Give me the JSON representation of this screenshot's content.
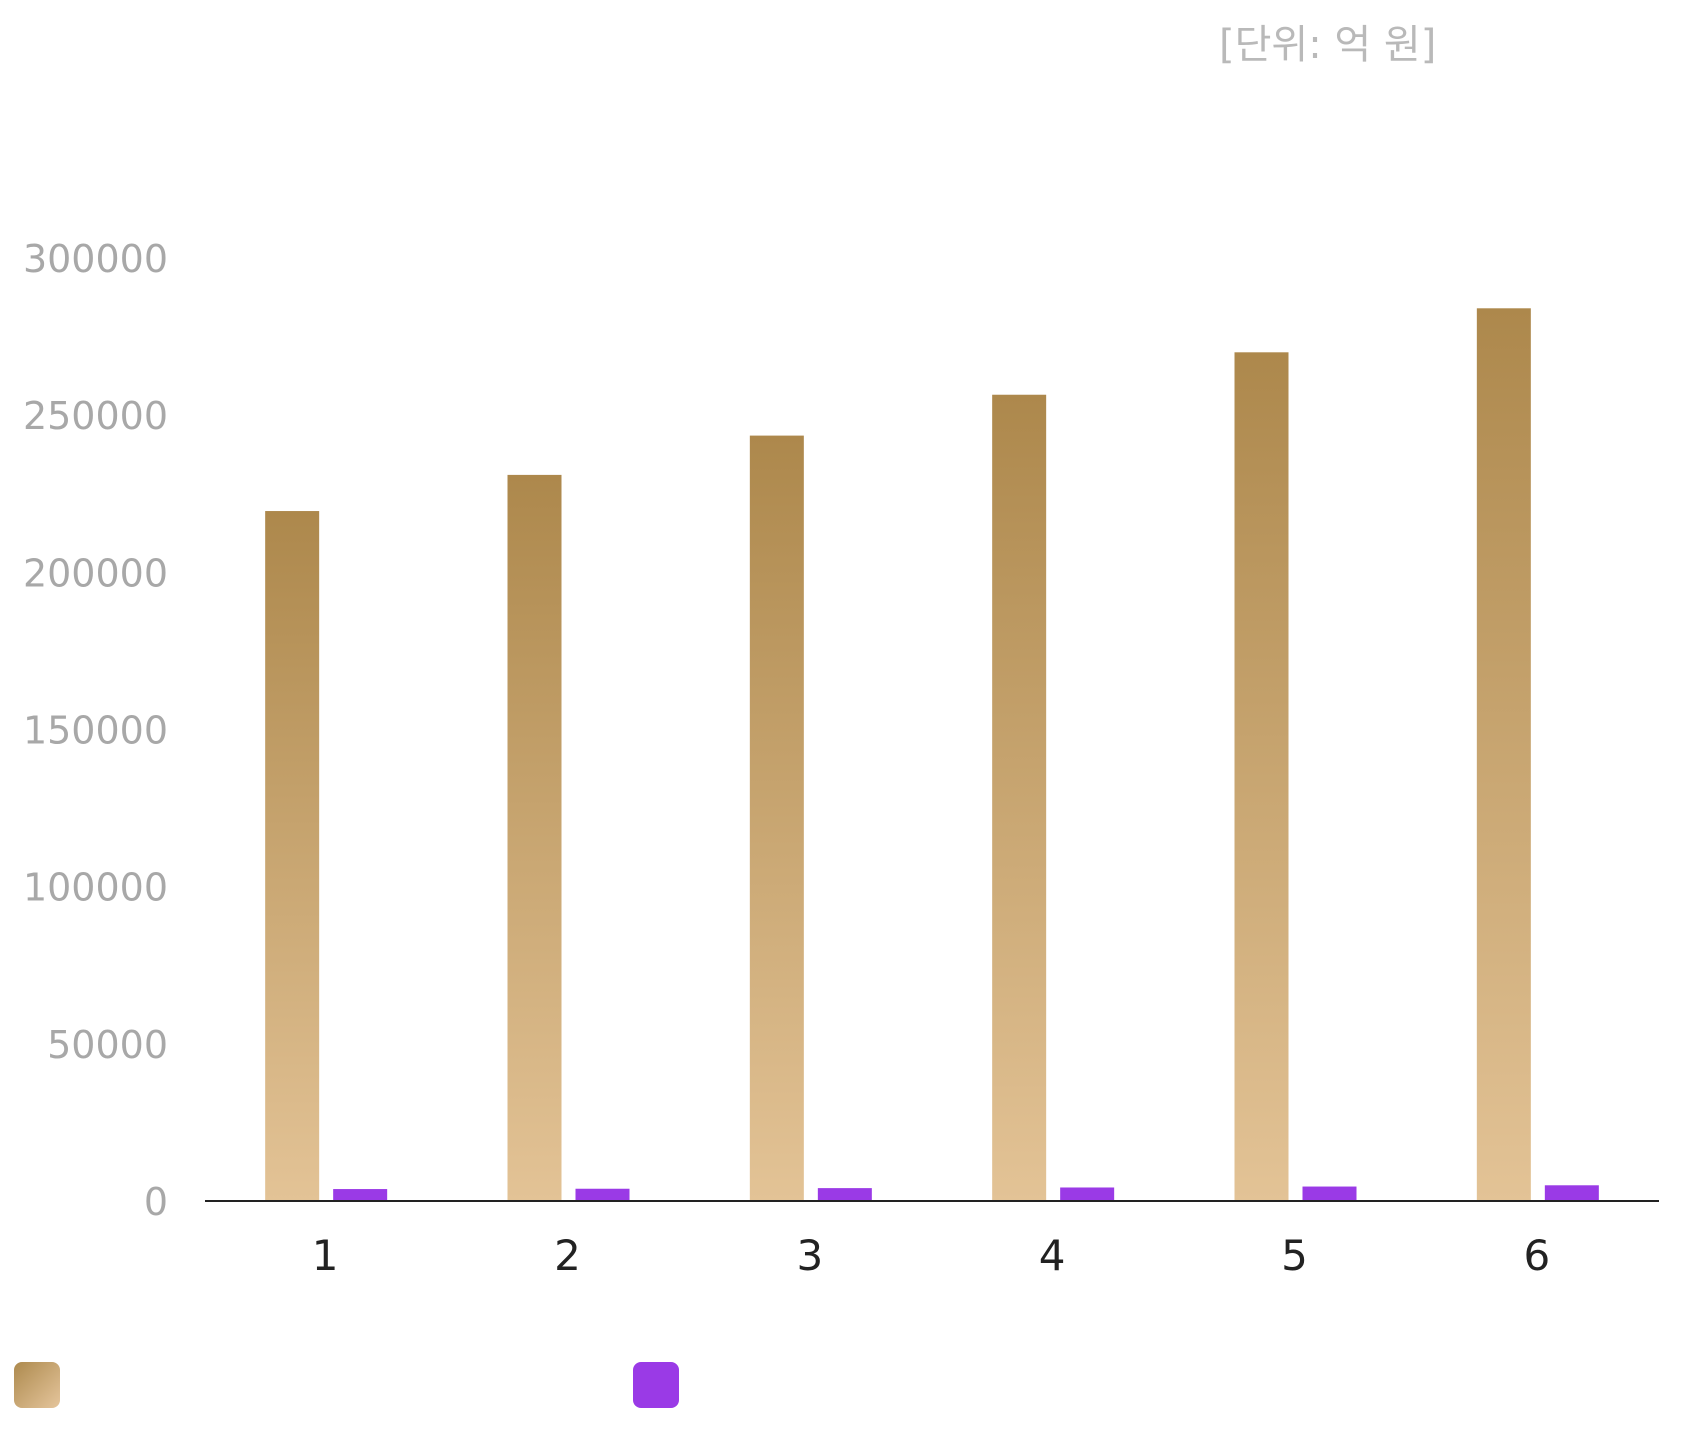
{
  "unit_label": "[단위: 억 원]",
  "chart_data": {
    "type": "bar",
    "categories": [
      "1",
      "2",
      "3",
      "4",
      "5",
      "6"
    ],
    "series": [
      {
        "values": [
          219500,
          231000,
          243500,
          256500,
          270000,
          284000
        ],
        "color": "#c9a46e"
      },
      {
        "values": [
          3800,
          3900,
          4100,
          4300,
          4600,
          5000
        ],
        "color": "#9a3ae6"
      }
    ],
    "yticks": [
      "0",
      "50000",
      "100000",
      "150000",
      "200000",
      "250000",
      "300000"
    ],
    "ylim": [
      0,
      300000
    ],
    "grid": false,
    "legend_position": "bottom-left"
  },
  "legend": [
    {
      "label": "",
      "swatch": "gold-gradient"
    },
    {
      "label": "",
      "swatch": "#9a3ae6"
    }
  ]
}
